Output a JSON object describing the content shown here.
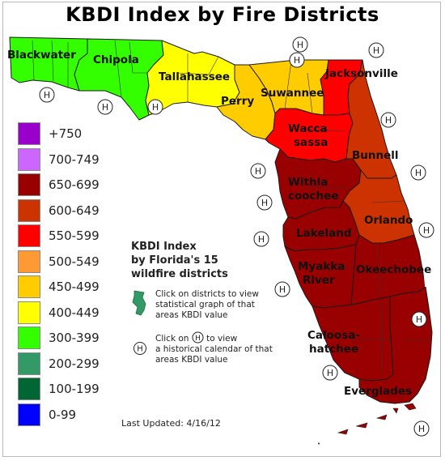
{
  "title": "KBDI Index by Fire Districts",
  "legend": [
    {
      "label": "+750",
      "color": "#9900cc"
    },
    {
      "label": "700-749",
      "color": "#cc66ff"
    },
    {
      "label": "650-699",
      "color": "#990000"
    },
    {
      "label": "600-649",
      "color": "#cc3300"
    },
    {
      "label": "550-599",
      "color": "#ff0000"
    },
    {
      "label": "500-549",
      "color": "#ff9933"
    },
    {
      "label": "450-499",
      "color": "#ffcc00"
    },
    {
      "label": "400-449",
      "color": "#ffff00"
    },
    {
      "label": "300-399",
      "color": "#33ff00"
    },
    {
      "label": "200-299",
      "color": "#339966"
    },
    {
      "label": "100-199",
      "color": "#006633"
    },
    {
      "label": "0-99",
      "color": "#0000ff"
    }
  ],
  "subtitle_lines": [
    "KBDI Index",
    "by Florida's 15",
    "wildfire districts"
  ],
  "instructions": {
    "districts_lines": [
      "Click on districts to view",
      "statistical graph of that",
      "areas KBDI value"
    ],
    "calendar_prefix": "Click on",
    "calendar_suffix": "to view",
    "calendar_lines": [
      "a historical calendar of that",
      "areas KBDI value"
    ],
    "h_symbol": "H"
  },
  "last_updated": "Last Updated: 4/16/12",
  "districts": [
    {
      "name": "Blackwater",
      "color": "#33ff00"
    },
    {
      "name": "Chipola",
      "color": "#33ff00"
    },
    {
      "name": "Tallahassee",
      "color": "#ffff00"
    },
    {
      "name": "Perry",
      "color": "#ffcc00"
    },
    {
      "name": "Suwannee",
      "color": "#ffcc00"
    },
    {
      "name": "Jacksonville",
      "color": "#ff0000"
    },
    {
      "name": "Wacca sassa",
      "color": "#ff0000"
    },
    {
      "name": "Bunnell",
      "color": "#cc3300"
    },
    {
      "name": "Withla coochee",
      "color": "#990000"
    },
    {
      "name": "Orlando",
      "color": "#cc3300"
    },
    {
      "name": "Lakeland",
      "color": "#990000"
    },
    {
      "name": "Myakka River",
      "color": "#990000"
    },
    {
      "name": "Okeechobee",
      "color": "#990000"
    },
    {
      "name": "Caloosa-hatchee",
      "color": "#990000"
    },
    {
      "name": "Everglades",
      "color": "#990000"
    }
  ]
}
